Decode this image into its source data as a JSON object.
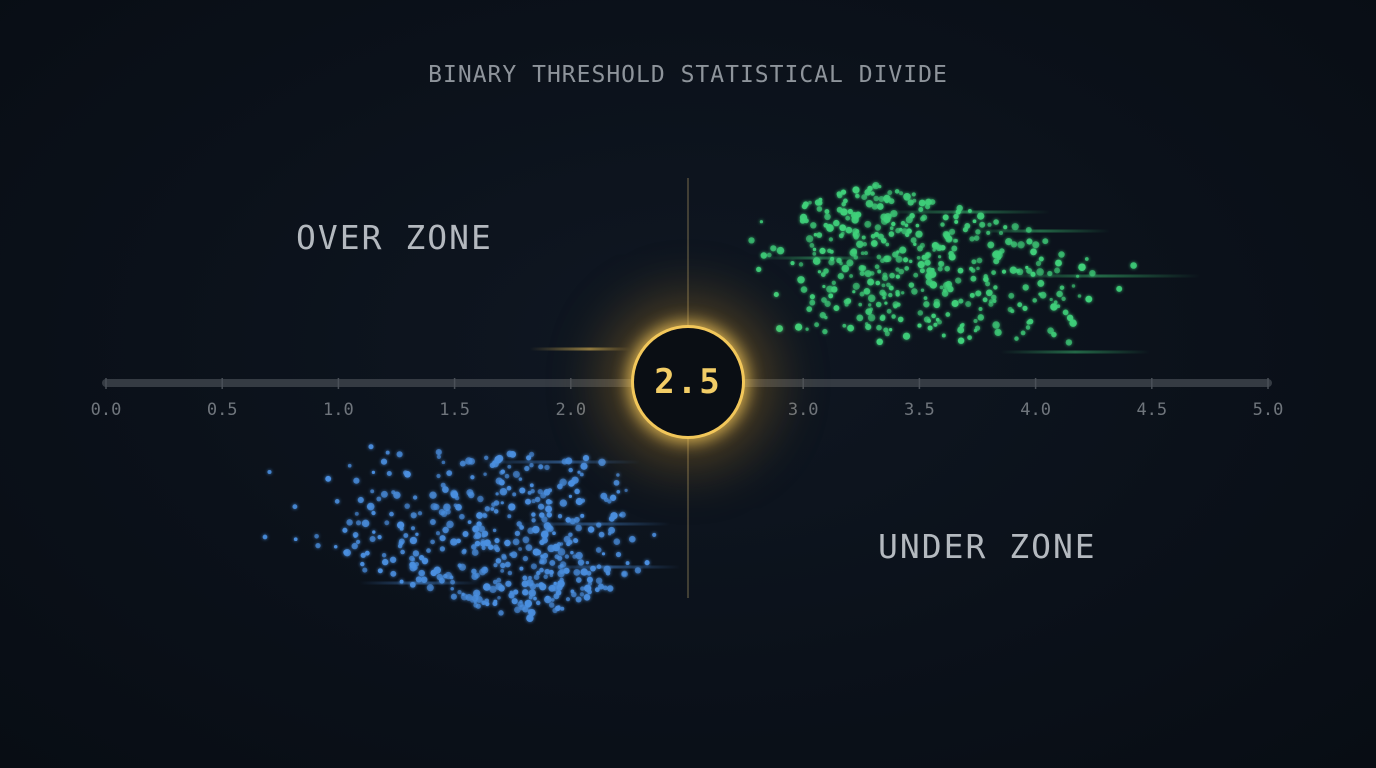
{
  "chart_data": {
    "type": "scatter",
    "title": "BINARY THRESHOLD STATISTICAL DIVIDE",
    "xlabel": "",
    "ylabel": "",
    "xlim": [
      0.0,
      5.0
    ],
    "x_ticks": [
      "0.0",
      "0.5",
      "1.0",
      "1.5",
      "2.0",
      "2.5",
      "3.0",
      "3.5",
      "4.0",
      "4.5",
      "5.0"
    ],
    "threshold": {
      "value": 2.5,
      "label": "2.5"
    },
    "zones": {
      "over": "OVER ZONE",
      "under": "UNDER ZONE"
    },
    "grid": false,
    "series": [
      {
        "region": "over",
        "color": "#3fd07a",
        "x_range": [
          2.6,
          4.9
        ],
        "x_mode": 3.3,
        "count": 420
      },
      {
        "region": "under",
        "color": "#4a8fe0",
        "x_range": [
          0.1,
          2.5
        ],
        "x_mode": 1.8,
        "count": 440
      }
    ],
    "colors": {
      "accent": "#f2c75a",
      "axis": "#3a4048",
      "text": "#8e949b"
    }
  }
}
